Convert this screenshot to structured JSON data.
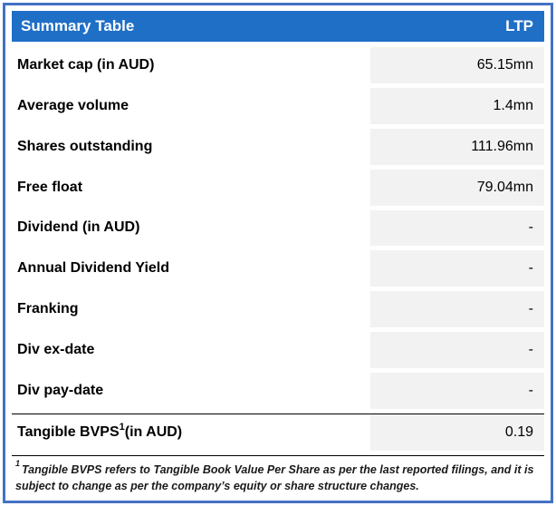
{
  "table": {
    "header": {
      "title": "Summary Table",
      "value_col": "LTP"
    },
    "rows": [
      {
        "label": "Market cap (in AUD)",
        "value": "65.15mn"
      },
      {
        "label": "Average volume",
        "value": "1.4mn"
      },
      {
        "label": "Shares outstanding",
        "value": "111.96mn"
      },
      {
        "label": "Free float",
        "value": "79.04mn"
      },
      {
        "label": "Dividend (in AUD)",
        "value": "-"
      },
      {
        "label": "Annual Dividend Yield",
        "value": "-"
      },
      {
        "label": "Franking",
        "value": "-"
      },
      {
        "label": "Div ex-date",
        "value": "-"
      },
      {
        "label": "Div pay-date",
        "value": "-"
      },
      {
        "label_main": "Tangible BVPS",
        "label_sup": "1",
        "label_rest": " (in AUD)",
        "value": "0.19"
      }
    ],
    "footnote": {
      "sup": "1",
      "text": "Tangible BVPS refers to Tangible Book Value Per Share as per the last reported filings, and it is subject to change as per the company’s equity or share structure changes."
    }
  },
  "colors": {
    "header_bg": "#1F6FC6",
    "header_text": "#FFFFFF",
    "outer_border": "#4472C4",
    "value_cell_bg": "#F2F2F2",
    "rule_line": "#000000"
  }
}
